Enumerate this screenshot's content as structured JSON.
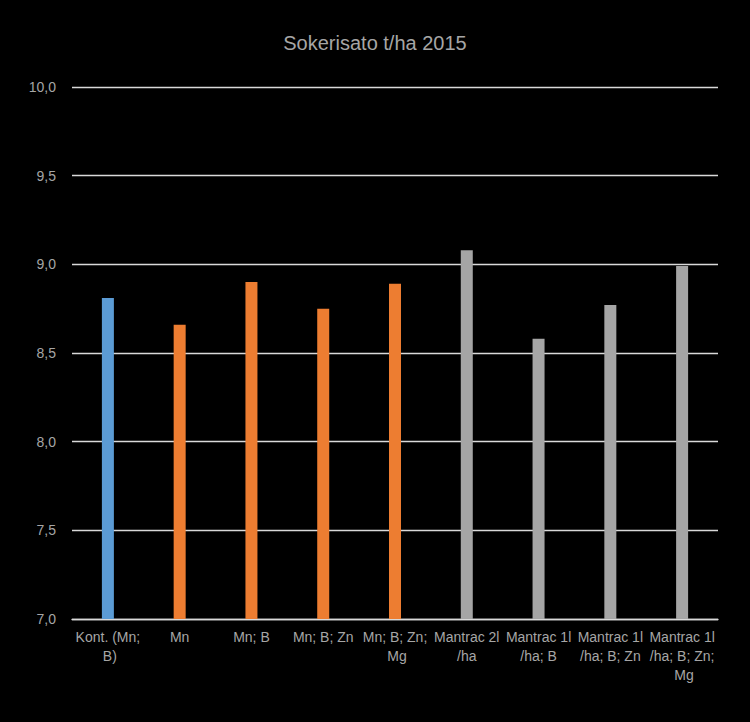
{
  "chart_data": {
    "type": "bar",
    "title": "Sokerisato t/ha 2015",
    "categories": [
      "Kont. (Mn; B)",
      "Mn",
      "Mn; B",
      "Mn; B; Zn",
      "Mn; B; Zn; Mg",
      "Mantrac 2l/ha",
      "Mantrac 1l/ha; B",
      "Mantrac 1l/ha; B; Zn",
      "Mantrac 1l/ha; B; Zn; Mg"
    ],
    "values": [
      8.81,
      8.66,
      8.9,
      8.75,
      8.89,
      9.08,
      8.58,
      8.77,
      8.99
    ],
    "colors": [
      "#5b9bd5",
      "#ed7d31",
      "#ed7d31",
      "#ed7d31",
      "#ed7d31",
      "#a5a5a5",
      "#a5a5a5",
      "#a5a5a5",
      "#a5a5a5"
    ],
    "ylim": [
      7,
      10
    ],
    "yticks": [
      {
        "value": 7,
        "label": "7,0"
      },
      {
        "value": 7.5,
        "label": "7,5"
      },
      {
        "value": 8,
        "label": "8,0"
      },
      {
        "value": 8.5,
        "label": "8,5"
      },
      {
        "value": 9,
        "label": "9,0"
      },
      {
        "value": 9.5,
        "label": "9,5"
      },
      {
        "value": 10,
        "label": "10,0"
      }
    ],
    "grid": true
  }
}
